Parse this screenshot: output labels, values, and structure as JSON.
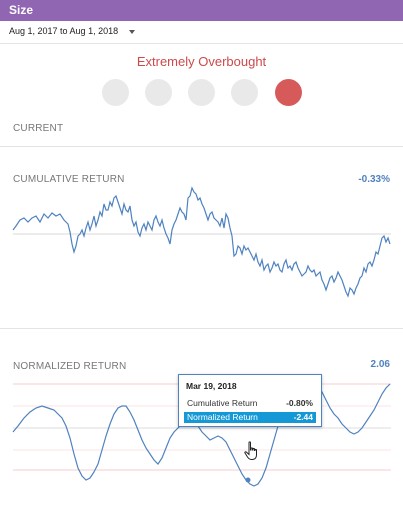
{
  "header": {
    "title": "Size"
  },
  "date_range": {
    "label": "Aug 1, 2017 to Aug 1, 2018"
  },
  "status": {
    "label": "Extremely Overbought",
    "levels": 5,
    "active_level": 5,
    "active_color": "#d75a5a",
    "inactive_color": "#e9e9e9"
  },
  "sections": {
    "current": {
      "label": "CURRENT"
    },
    "cumulative": {
      "label": "CUMULATIVE RETURN",
      "value": "-0.33%"
    },
    "normalized": {
      "label": "NORMALIZED RETURN",
      "value": "2.06"
    }
  },
  "tooltip": {
    "date": "Mar 19, 2018",
    "rows": [
      {
        "label": "Cumulative Return",
        "value": "-0.80%"
      },
      {
        "label": "Normalized Return",
        "value": "-2.44"
      }
    ]
  },
  "colors": {
    "accent": "#9065b2",
    "line": "#4f82c0",
    "danger": "#d75a5a",
    "highlight": "#1599d6"
  },
  "icons": {
    "dropdown": "caret-down-icon",
    "cursor": "hand-pointer-icon"
  }
}
